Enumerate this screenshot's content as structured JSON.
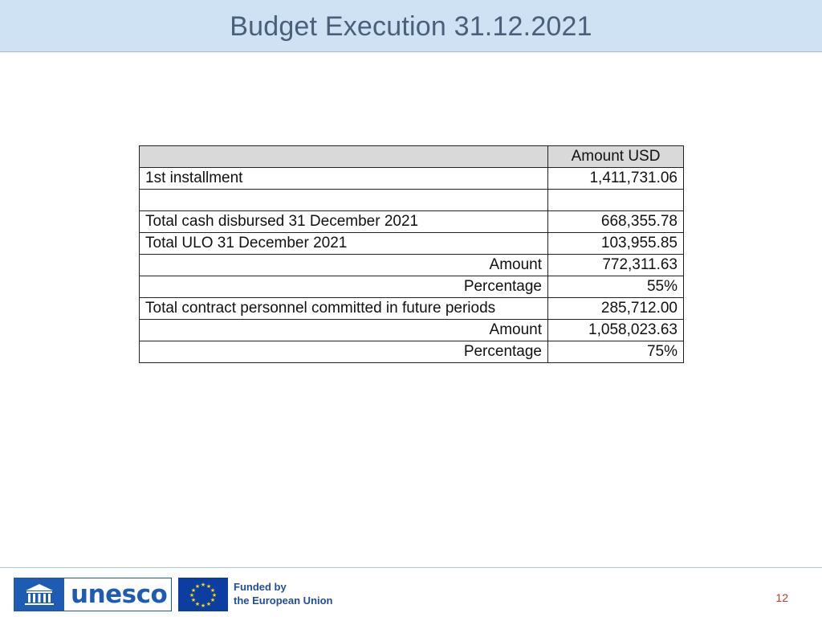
{
  "slide": {
    "title": "Budget Execution 31.12.2021",
    "page_number": "12"
  },
  "table": {
    "header": {
      "label": "",
      "amount": "Amount USD"
    },
    "rows": [
      {
        "label": "1st installment",
        "value": "1,411,731.06",
        "align": "left"
      },
      {
        "label": "",
        "value": "",
        "align": "left"
      },
      {
        "label": "Total cash disbursed 31 December 2021",
        "value": "668,355.78",
        "align": "left"
      },
      {
        "label": "Total ULO 31 December 2021",
        "value": "103,955.85",
        "align": "left"
      },
      {
        "label": "Amount",
        "value": "772,311.63",
        "align": "right"
      },
      {
        "label": "Percentage",
        "value": "55%",
        "align": "right"
      },
      {
        "label": "Total contract personnel committed in future periods",
        "value": "285,712.00",
        "align": "left"
      },
      {
        "label": "Amount",
        "value": "1,058,023.63",
        "align": "right"
      },
      {
        "label": "Percentage",
        "value": "75%",
        "align": "right"
      }
    ]
  },
  "footer": {
    "unesco_logo": "unesco",
    "eu_label_line1": "Funded by",
    "eu_label_line2": "the European Union",
    "unesco_icon": "temple-icon",
    "eu_icon": "eu-flag-icon"
  },
  "colors": {
    "header_bg": "#cfe2f3",
    "title": "#4a5f7a",
    "unesco_blue": "#1e5cb3",
    "page_number": "#c0392b"
  }
}
